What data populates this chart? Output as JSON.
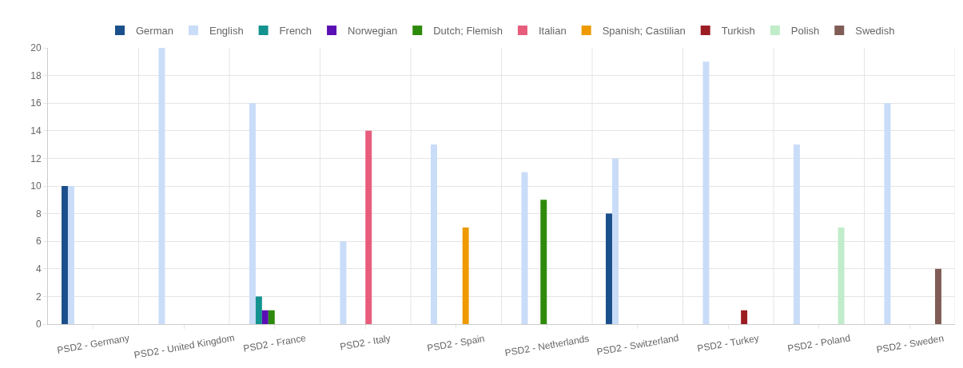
{
  "chart_data": {
    "type": "bar",
    "categories": [
      "PSD2 - Germany",
      "PSD2 - United Kingdom",
      "PSD2 - France",
      "PSD2 - Italy",
      "PSD2 - Spain",
      "PSD2 - Netherlands",
      "PSD2 - Switzerland",
      "PSD2 - Turkey",
      "PSD2 - Poland",
      "PSD2 - Sweden"
    ],
    "series": [
      {
        "name": "German",
        "color": "#1a4f8b",
        "values": [
          10,
          0,
          0,
          0,
          0,
          0,
          8,
          0,
          0,
          0
        ]
      },
      {
        "name": "English",
        "color": "#c9dcf8",
        "values": [
          10,
          20,
          16,
          6,
          13,
          11,
          12,
          19,
          13,
          16
        ]
      },
      {
        "name": "French",
        "color": "#13938f",
        "values": [
          0,
          0,
          2,
          0,
          0,
          0,
          0,
          0,
          0,
          0
        ]
      },
      {
        "name": "Norwegian",
        "color": "#5a0fb4",
        "values": [
          0,
          0,
          1,
          0,
          0,
          0,
          0,
          0,
          0,
          0
        ]
      },
      {
        "name": "Dutch; Flemish",
        "color": "#2e8a0b",
        "values": [
          0,
          0,
          1,
          0,
          0,
          9,
          0,
          0,
          0,
          0
        ]
      },
      {
        "name": "Italian",
        "color": "#e85d7c",
        "values": [
          0,
          0,
          0,
          14,
          0,
          0,
          0,
          0,
          0,
          0
        ]
      },
      {
        "name": "Spanish; Castilian",
        "color": "#ee9a00",
        "values": [
          0,
          0,
          0,
          0,
          7,
          0,
          0,
          0,
          0,
          0
        ]
      },
      {
        "name": "Turkish",
        "color": "#9b1c23",
        "values": [
          0,
          0,
          0,
          0,
          0,
          0,
          0,
          1,
          0,
          0
        ]
      },
      {
        "name": "Polish",
        "color": "#c0ecc9",
        "values": [
          0,
          0,
          0,
          0,
          0,
          0,
          0,
          0,
          7,
          0
        ]
      },
      {
        "name": "Swedish",
        "color": "#7f5c55",
        "values": [
          0,
          0,
          0,
          0,
          0,
          0,
          0,
          0,
          0,
          4
        ]
      }
    ],
    "ylim": [
      0,
      20
    ],
    "yticks": [
      0,
      2,
      4,
      6,
      8,
      10,
      12,
      14,
      16,
      18,
      20
    ],
    "grid": true,
    "legend": "top"
  }
}
